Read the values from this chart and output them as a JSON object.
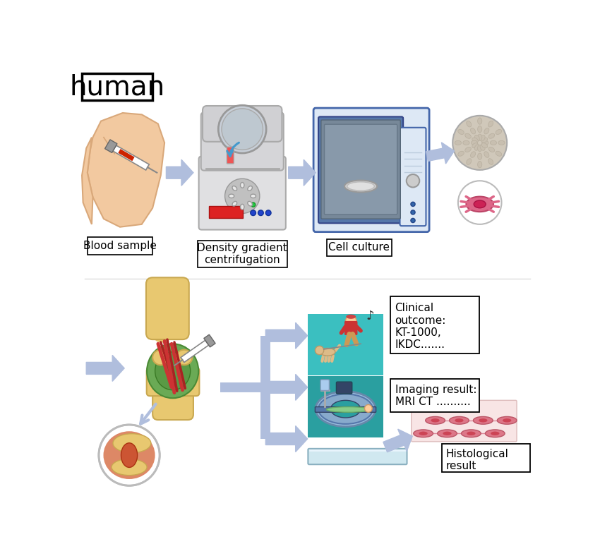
{
  "title": "human",
  "bg_color": "#ffffff",
  "labels": {
    "blood_sample": "Blood sample",
    "centrifugation": "Density gradient\ncentrifugation",
    "cell_culture": "Cell culture",
    "clinical_outcome": "Clinical\noutcome:\nKT-1000,\nIKDC.......",
    "imaging_result": "Imaging result:\nMRI CT ..........",
    "histological_result": "Histological\nresult"
  },
  "arrow_color": "#b0bedd",
  "label_box_color": "#ffffff",
  "label_box_edge": "#000000",
  "text_color": "#000000",
  "teal_bg1": "#3bbfc0",
  "teal_bg2": "#2a9fa0",
  "cell_bg": "#f8e8e8",
  "label_fontsize": 11,
  "title_fontsize": 28
}
